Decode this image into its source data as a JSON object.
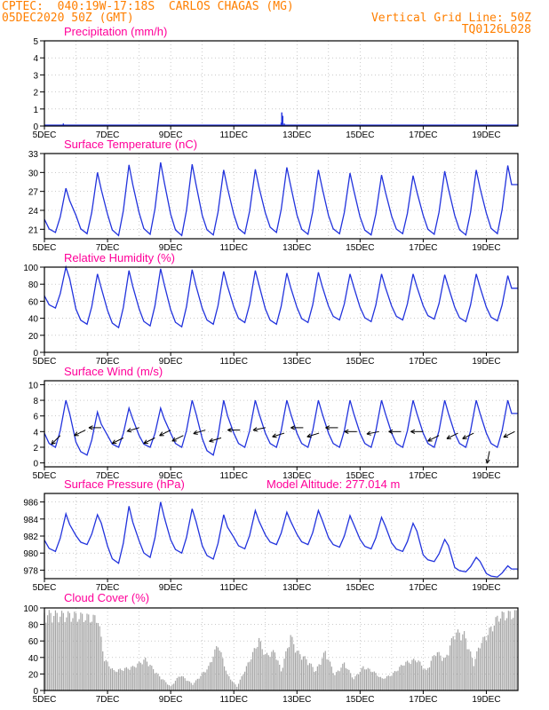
{
  "header": {
    "line1": "CPTEC:  040:19W-17:18S  CARLOS CHAGAS (MG)",
    "line2": "05DEC2020 50Z (GMT)",
    "grid_note": "Vertical Grid Line: 50Z",
    "code": "TQ0126L028",
    "header_color": "#ff7f00"
  },
  "colors": {
    "title": "#ff0099",
    "line": "#2233dd",
    "bars": "#a6a6a6",
    "wind": "#000000",
    "grid": "#aaaaaa"
  },
  "x_ticks": [
    "5DEC",
    "7DEC",
    "9DEC",
    "11DEC",
    "13DEC",
    "15DEC",
    "17DEC",
    "19DEC"
  ],
  "x_range_days": [
    5,
    20
  ],
  "chart_data": [
    {
      "type": "bar",
      "title": "Precipitation (mm/h)",
      "ylim": [
        0,
        5
      ],
      "yticks": [
        "0",
        "1",
        "2",
        "3",
        "4",
        "5"
      ],
      "points": [
        [
          5.6,
          0.15
        ],
        [
          12.5,
          0.2
        ],
        [
          12.52,
          0.8
        ],
        [
          12.55,
          0.6
        ],
        [
          12.6,
          0.15
        ],
        [
          13.2,
          0.05
        ],
        [
          15.0,
          0.04
        ]
      ]
    },
    {
      "type": "line",
      "title": "Surface Temperature (nC)",
      "ylim": [
        19.5,
        33
      ],
      "yticks": [
        "21",
        "24",
        "27",
        "30",
        "33"
      ],
      "minima": [
        20.5,
        20.3,
        20.0,
        20.2,
        20.0,
        20.1,
        20.3,
        20.5,
        20.2,
        20.3,
        20.1,
        20.3,
        20.2,
        20.1,
        20.3
      ],
      "maxima": [
        27.5,
        30.0,
        31.2,
        31.6,
        31.3,
        30.4,
        30.5,
        30.8,
        30.4,
        29.9,
        29.6,
        29.5,
        30.2,
        30.4,
        31.1
      ]
    },
    {
      "type": "line",
      "title": "Relative Humidity (%)",
      "ylim": [
        0,
        100
      ],
      "yticks": [
        "0",
        "20",
        "40",
        "60",
        "80",
        "100"
      ],
      "minima": [
        52,
        33,
        29,
        31,
        30,
        33,
        35,
        33,
        35,
        38,
        36,
        38,
        39,
        36,
        37
      ],
      "maxima": [
        100,
        92,
        96,
        98,
        97,
        95,
        96,
        93,
        94,
        92,
        92,
        92,
        91,
        92,
        90
      ]
    },
    {
      "type": "line",
      "title": "Surface Wind (m/s)",
      "ylim": [
        -0.5,
        10.5
      ],
      "yticks": [
        "0",
        "2",
        "4",
        "6",
        "8",
        "10"
      ],
      "minima": [
        2,
        1,
        2,
        2,
        2,
        1,
        2,
        2,
        2,
        2,
        2,
        2,
        2,
        2,
        2
      ],
      "maxima": [
        8,
        6.5,
        7,
        7,
        8,
        8,
        8,
        8,
        8,
        8,
        8,
        8,
        8,
        8,
        8
      ],
      "wind_vectors": [
        [
          5.5,
          3.5,
          -1,
          -1
        ],
        [
          6.3,
          4.2,
          -1,
          -0.5
        ],
        [
          6.8,
          4.5,
          -1,
          0
        ],
        [
          7.5,
          3.2,
          -1,
          -0.5
        ],
        [
          8.0,
          4.5,
          -1,
          -0.3
        ],
        [
          8.5,
          3.2,
          -1,
          -0.5
        ],
        [
          9.0,
          4.2,
          -1,
          -0.5
        ],
        [
          9.4,
          3.5,
          -1,
          -0.5
        ],
        [
          10.1,
          4.2,
          -1,
          -0.3
        ],
        [
          10.6,
          3.2,
          -1,
          -0.3
        ],
        [
          11.2,
          4.2,
          -1,
          0
        ],
        [
          12.0,
          4.5,
          -1,
          -0.2
        ],
        [
          12.6,
          3.8,
          -1,
          -0.3
        ],
        [
          13.2,
          4.5,
          -1,
          0
        ],
        [
          13.7,
          3.8,
          -1,
          -0.3
        ],
        [
          14.3,
          4.5,
          -1,
          0
        ],
        [
          14.9,
          4.0,
          -1,
          0
        ],
        [
          15.6,
          4.0,
          -1,
          -0.2
        ],
        [
          16.3,
          4.0,
          -1,
          0
        ],
        [
          17.0,
          4.0,
          -1,
          0
        ],
        [
          17.5,
          3.5,
          -1,
          -0.5
        ],
        [
          18.1,
          3.8,
          -1,
          -0.5
        ],
        [
          18.6,
          3.8,
          -1,
          -0.5
        ],
        [
          19.1,
          1.5,
          -0.2,
          -1
        ],
        [
          19.9,
          4.0,
          -1,
          -0.5
        ]
      ]
    },
    {
      "type": "line",
      "title": "Surface Pressure (hPa)",
      "subtitle": "Model Altitude: 277.014 m",
      "ylim": [
        977,
        987
      ],
      "yticks": [
        "978",
        "980",
        "982",
        "984",
        "986"
      ],
      "minima": [
        980.2,
        981.0,
        978.8,
        979.5,
        980.0,
        979.3,
        980.5,
        981.0,
        981.0,
        980.7,
        980.5,
        980.2,
        979.0,
        977.8,
        977.2
      ],
      "maxima": [
        984.6,
        984.5,
        985.5,
        986.0,
        985.2,
        984.5,
        985.0,
        984.8,
        985.0,
        984.4,
        984.2,
        983.5,
        981.6,
        979.5,
        978.5
      ]
    },
    {
      "type": "bar",
      "title": "Cloud Cover (%)",
      "ylim": [
        0,
        100
      ],
      "yticks": [
        "0",
        "20",
        "40",
        "60",
        "80",
        "100"
      ],
      "profile": [
        [
          5.0,
          98
        ],
        [
          6.0,
          96
        ],
        [
          6.7,
          92
        ],
        [
          6.9,
          40
        ],
        [
          7.2,
          25
        ],
        [
          7.8,
          30
        ],
        [
          8.2,
          40
        ],
        [
          8.6,
          20
        ],
        [
          9.0,
          5
        ],
        [
          9.3,
          20
        ],
        [
          9.7,
          8
        ],
        [
          10.2,
          30
        ],
        [
          10.5,
          60
        ],
        [
          10.8,
          20
        ],
        [
          11.1,
          5
        ],
        [
          11.4,
          30
        ],
        [
          11.8,
          65
        ],
        [
          12.0,
          45
        ],
        [
          12.3,
          50
        ],
        [
          12.5,
          25
        ],
        [
          12.8,
          70
        ],
        [
          13.0,
          50
        ],
        [
          13.3,
          40
        ],
        [
          13.6,
          25
        ],
        [
          13.9,
          50
        ],
        [
          14.2,
          20
        ],
        [
          14.5,
          35
        ],
        [
          14.8,
          15
        ],
        [
          15.1,
          30
        ],
        [
          15.4,
          25
        ],
        [
          15.7,
          15
        ],
        [
          16.0,
          20
        ],
        [
          16.4,
          35
        ],
        [
          16.8,
          40
        ],
        [
          17.1,
          25
        ],
        [
          17.4,
          50
        ],
        [
          17.7,
          40
        ],
        [
          18.0,
          75
        ],
        [
          18.3,
          72
        ],
        [
          18.6,
          35
        ],
        [
          18.8,
          60
        ],
        [
          19.0,
          70
        ],
        [
          19.4,
          96
        ],
        [
          20.0,
          99
        ]
      ]
    }
  ]
}
